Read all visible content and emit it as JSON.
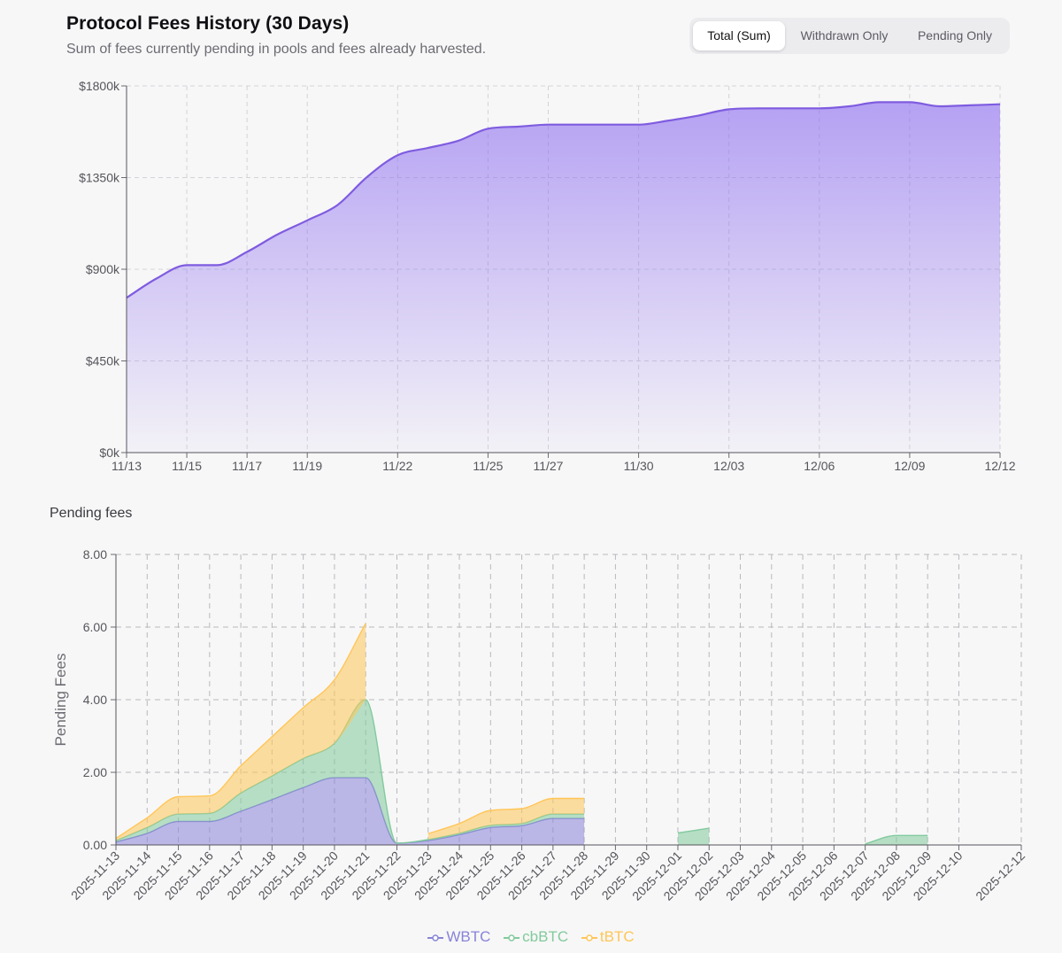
{
  "header": {
    "title": "Protocol Fees History (30 Days)",
    "subtitle": "Sum of fees currently pending in pools and fees already harvested."
  },
  "toggle": {
    "options": [
      "Total (Sum)",
      "Withdrawn Only",
      "Pending Only"
    ],
    "active": "Total (Sum)"
  },
  "pending_section": {
    "title": "Pending fees"
  },
  "chart_data": [
    {
      "type": "area",
      "title": "Protocol Fees History (30 Days)",
      "xlabel": "",
      "ylabel": "",
      "x": [
        "11/13",
        "11/14",
        "11/15",
        "11/16",
        "11/17",
        "11/18",
        "11/19",
        "11/20",
        "11/21",
        "11/22",
        "11/23",
        "11/24",
        "11/25",
        "11/26",
        "11/27",
        "11/28",
        "11/29",
        "11/30",
        "12/01",
        "12/02",
        "12/03",
        "12/04",
        "12/05",
        "12/06",
        "12/07",
        "12/08",
        "12/09",
        "12/10",
        "12/11",
        "12/12"
      ],
      "x_tick_labels": [
        "11/13",
        "11/15",
        "11/17",
        "11/19",
        "11/22",
        "11/25",
        "11/27",
        "11/30",
        "12/03",
        "12/06",
        "12/09",
        "12/12"
      ],
      "y_tick_labels": [
        "$0k",
        "$450k",
        "$900k",
        "$1350k",
        "$1800k"
      ],
      "ylim": [
        0,
        1800
      ],
      "unit": "k USD",
      "series": [
        {
          "name": "Total",
          "color": "#7f5ce0",
          "values": [
            760,
            855,
            920,
            920,
            985,
            1070,
            1140,
            1215,
            1355,
            1460,
            1495,
            1530,
            1590,
            1600,
            1610,
            1610,
            1610,
            1610,
            1630,
            1655,
            1685,
            1690,
            1690,
            1690,
            1700,
            1720,
            1720,
            1700,
            1705,
            1710
          ]
        }
      ]
    },
    {
      "type": "area",
      "stacked": true,
      "title": "Pending fees",
      "xlabel": "",
      "ylabel": "Pending Fees",
      "x": [
        "2025-11-13",
        "2025-11-14",
        "2025-11-15",
        "2025-11-16",
        "2025-11-17",
        "2025-11-18",
        "2025-11-19",
        "2025-11-20",
        "2025-11-21",
        "2025-11-22",
        "2025-11-23",
        "2025-11-24",
        "2025-11-25",
        "2025-11-26",
        "2025-11-27",
        "2025-11-28",
        "2025-11-29",
        "2025-11-30",
        "2025-12-01",
        "2025-12-02",
        "2025-12-03",
        "2025-12-04",
        "2025-12-05",
        "2025-12-06",
        "2025-12-07",
        "2025-12-08",
        "2025-12-09",
        "2025-12-10",
        "2025-12-11",
        "2025-12-12"
      ],
      "x_tick_labels": [
        "2025-11-13",
        "2025-11-14",
        "2025-11-15",
        "2025-11-16",
        "2025-11-17",
        "2025-11-18",
        "2025-11-19",
        "2025-11-20",
        "2025-11-21",
        "2025-11-22",
        "2025-11-23",
        "2025-11-24",
        "2025-11-25",
        "2025-11-26",
        "2025-11-27",
        "2025-11-28",
        "2025-11-29",
        "2025-11-30",
        "2025-12-01",
        "2025-12-02",
        "2025-12-03",
        "2025-12-04",
        "2025-12-05",
        "2025-12-06",
        "2025-12-07",
        "2025-12-08",
        "2025-12-09",
        "2025-12-10",
        "2025-12-12"
      ],
      "y_tick_labels": [
        "0.00",
        "2.00",
        "4.00",
        "6.00",
        "8.00"
      ],
      "ylim": [
        0,
        8
      ],
      "series": [
        {
          "name": "WBTC",
          "color": "#8884d8",
          "values": [
            0.08,
            0.32,
            0.65,
            0.65,
            0.93,
            1.25,
            1.58,
            1.85,
            1.85,
            0.05,
            0.12,
            0.28,
            0.48,
            0.53,
            0.73,
            0.73,
            null,
            null,
            null,
            null,
            null,
            null,
            null,
            null,
            null,
            null,
            null,
            null,
            null,
            null
          ]
        },
        {
          "name": "cbBTC",
          "color": "#82ca9d",
          "values": [
            0.04,
            0.16,
            0.2,
            0.22,
            0.5,
            0.65,
            0.8,
            0.95,
            2.15,
            0.0,
            0.03,
            0.04,
            0.06,
            0.06,
            0.12,
            0.12,
            null,
            null,
            0.33,
            0.46,
            null,
            null,
            null,
            null,
            0.03,
            0.26,
            0.26,
            null,
            null,
            null
          ]
        },
        {
          "name": "tBTC",
          "color": "#ffc658",
          "values": [
            0.06,
            0.27,
            0.48,
            0.48,
            0.75,
            1.08,
            1.4,
            1.75,
            2.1,
            null,
            0.16,
            0.27,
            0.41,
            0.41,
            0.43,
            0.43,
            null,
            null,
            null,
            null,
            null,
            null,
            null,
            null,
            null,
            null,
            null,
            null,
            null,
            null
          ]
        }
      ],
      "legend": [
        "WBTC",
        "cbBTC",
        "tBTC"
      ],
      "legend_position": "bottom-center"
    }
  ]
}
